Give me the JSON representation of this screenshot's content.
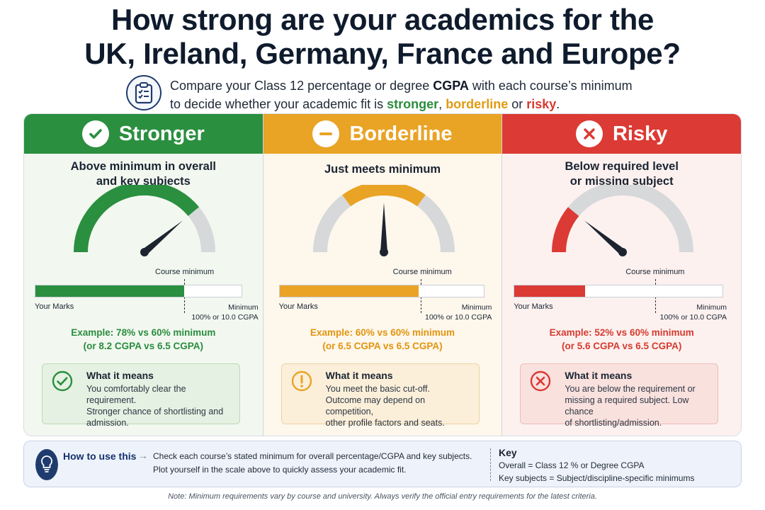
{
  "title": {
    "line1": "How strong are your academics for the",
    "line2": "UK, Ireland, Germany, France and Europe?"
  },
  "intro": {
    "icon": "checklist-icon",
    "part1": "Compare your Class 12 percentage or degree ",
    "cgpa": "CGPA",
    "part2": " with each course’s minimum",
    "part3": "to decide whether your academic fit is ",
    "stronger": "stronger",
    "comma": ", ",
    "borderline": "borderline",
    "or": " or ",
    "risky": "risky",
    "period": "."
  },
  "colors": {
    "green": "#2a8f3f",
    "yellow": "#e9a325",
    "red": "#dc3a34",
    "gray": "#d6d8da"
  },
  "panels": [
    {
      "heading": "Stronger",
      "icon": "check-circle-icon",
      "subtitle_line1": "Above minimum in overall",
      "subtitle_line2": "and key subjects",
      "gauge_level": 0.78,
      "bar_fill": 0.72,
      "course_minimum": "Course minimum",
      "your_marks": "Your Marks",
      "minimum_line1": "Minimum",
      "minimum_line2": "100% or 10.0 CGPA",
      "example_line1": "Example: 78% vs 60% minimum",
      "example_line2": "(or 8.2 CGPA vs 6.5 CGPA)",
      "means_icon": "check-circle-icon",
      "means_heading": "What it means",
      "means_line1": "You comfortably clear the requirement.",
      "means_line2": "Stronger chance of shortlisting and",
      "means_line3": "admission."
    },
    {
      "heading": "Borderline",
      "icon": "minus-circle-icon",
      "subtitle_line1": "Just meets minimum",
      "subtitle_line2": "",
      "gauge_level": 0.5,
      "bar_fill": 0.68,
      "course_minimum": "Course minimum",
      "your_marks": "Your Marks",
      "minimum_line1": "Minimum",
      "minimum_line2": "100% or 10.0 CGPA",
      "example_line1": "Example: 60% vs 60% minimum",
      "example_line2": "(or 6.5 CGPA vs 6.5 CGPA)",
      "means_icon": "exclamation-circle-icon",
      "means_heading": "What it means",
      "means_line1": "You meet the basic cut-off.",
      "means_line2": "Outcome may depend on competition,",
      "means_line3": "other profile factors and seats."
    },
    {
      "heading": "Risky",
      "icon": "x-circle-icon",
      "subtitle_line1": "Below required level",
      "subtitle_line2": "or missing subject",
      "gauge_level": 0.22,
      "bar_fill": 0.34,
      "course_minimum": "Course minimum",
      "your_marks": "Your Marks",
      "minimum_line1": "Minimum",
      "minimum_line2": "100% or 10.0 CGPA",
      "example_line1": "Example: 52% vs 60% minimum",
      "example_line2": "(or 5.6 CGPA vs 6.5 CGPA)",
      "means_icon": "x-circle-icon",
      "means_heading": "What it means",
      "means_line1": "You are below the requirement or",
      "means_line2": "missing a required subject. Low chance",
      "means_line3": "of shortlisting/admission."
    }
  ],
  "how_to": {
    "icon": "lightbulb-icon",
    "label": "How to use this",
    "arrow": "→",
    "line1": "Check each course’s stated minimum for overall percentage/CGPA and key subjects.",
    "line2": "Plot yourself in the scale above to quickly assess your academic fit."
  },
  "key": {
    "heading": "Key",
    "line1": "Overall = Class 12 % or Degree CGPA",
    "line2": "Key subjects = Subject/discipline-specific minimums"
  },
  "note": "Note: Minimum requirements vary by course and university. Always verify the official entry requirements for the latest criteria."
}
